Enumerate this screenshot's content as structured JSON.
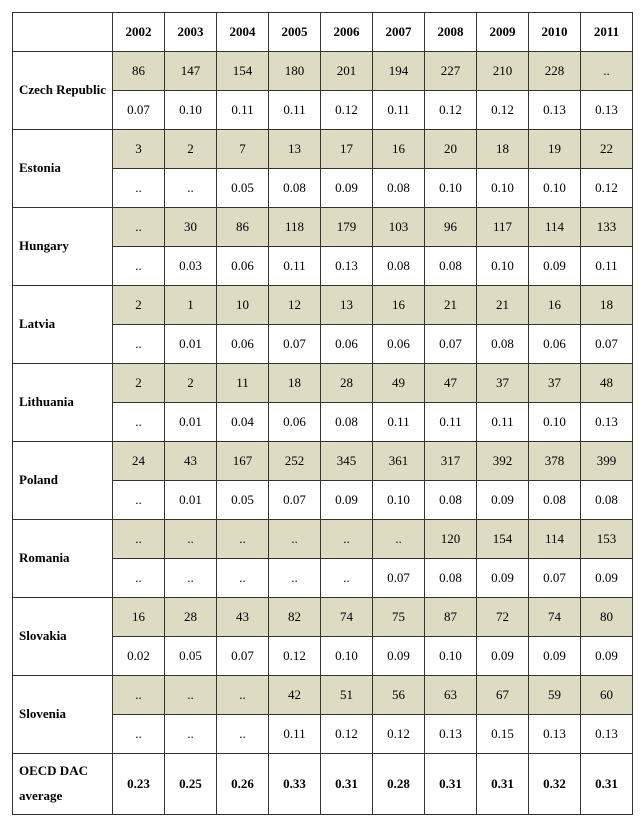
{
  "columns": [
    "2002",
    "2003",
    "2004",
    "2005",
    "2006",
    "2007",
    "2008",
    "2009",
    "2010",
    "2011"
  ],
  "countries": [
    {
      "name": "Czech Republic",
      "r1": [
        "86",
        "147",
        "154",
        "180",
        "201",
        "194",
        "227",
        "210",
        "228",
        ".."
      ],
      "r2": [
        "0.07",
        "0.10",
        "0.11",
        "0.11",
        "0.12",
        "0.11",
        "0.12",
        "0.12",
        "0.13",
        "0.13"
      ]
    },
    {
      "name": "Estonia",
      "r1": [
        "3",
        "2",
        "7",
        "13",
        "17",
        "16",
        "20",
        "18",
        "19",
        "22"
      ],
      "r2": [
        "..",
        "..",
        "0.05",
        "0.08",
        "0.09",
        "0.08",
        "0.10",
        "0.10",
        "0.10",
        "0.12"
      ]
    },
    {
      "name": "Hungary",
      "r1": [
        "..",
        "30",
        "86",
        "118",
        "179",
        "103",
        "96",
        "117",
        "114",
        "133"
      ],
      "r2": [
        "..",
        "0.03",
        "0.06",
        "0.11",
        "0.13",
        "0.08",
        "0.08",
        "0.10",
        "0.09",
        "0.11"
      ]
    },
    {
      "name": "Latvia",
      "r1": [
        "2",
        "1",
        "10",
        "12",
        "13",
        "16",
        "21",
        "21",
        "16",
        "18"
      ],
      "r2": [
        "..",
        "0.01",
        "0.06",
        "0.07",
        "0.06",
        "0.06",
        "0.07",
        "0.08",
        "0.06",
        "0.07"
      ]
    },
    {
      "name": "Lithuania",
      "r1": [
        "2",
        "2",
        "11",
        "18",
        "28",
        "49",
        "47",
        "37",
        "37",
        "48"
      ],
      "r2": [
        "..",
        "0.01",
        "0.04",
        "0.06",
        "0.08",
        "0.11",
        "0.11",
        "0.11",
        "0.10",
        "0.13"
      ]
    },
    {
      "name": "Poland",
      "r1": [
        "24",
        "43",
        "167",
        "252",
        "345",
        "361",
        "317",
        "392",
        "378",
        "399"
      ],
      "r2": [
        "..",
        "0.01",
        "0.05",
        "0.07",
        "0.09",
        "0.10",
        "0.08",
        "0.09",
        "0.08",
        "0.08"
      ]
    },
    {
      "name": "Romania",
      "r1": [
        "..",
        "..",
        "..",
        "..",
        "..",
        "..",
        "120",
        "154",
        "114",
        "153"
      ],
      "r2": [
        "..",
        "..",
        "..",
        "..",
        "..",
        "0.07",
        "0.08",
        "0.09",
        "0.07",
        "0.09"
      ]
    },
    {
      "name": "Slovakia",
      "r1": [
        "16",
        "28",
        "43",
        "82",
        "74",
        "75",
        "87",
        "72",
        "74",
        "80"
      ],
      "r2": [
        "0.02",
        "0.05",
        "0.07",
        "0.12",
        "0.10",
        "0.09",
        "0.10",
        "0.09",
        "0.09",
        "0.09"
      ]
    },
    {
      "name": "Slovenia",
      "r1": [
        "..",
        "..",
        "..",
        "42",
        "51",
        "56",
        "63",
        "67",
        "59",
        "60"
      ],
      "r2": [
        "..",
        "..",
        "..",
        "0.11",
        "0.12",
        "0.12",
        "0.13",
        "0.15",
        "0.13",
        "0.13"
      ]
    }
  ],
  "footer": {
    "label": "OECD DAC average",
    "values": [
      "0.23",
      "0.25",
      "0.26",
      "0.33",
      "0.31",
      "0.28",
      "0.31",
      "0.31",
      "0.32",
      "0.31"
    ]
  }
}
